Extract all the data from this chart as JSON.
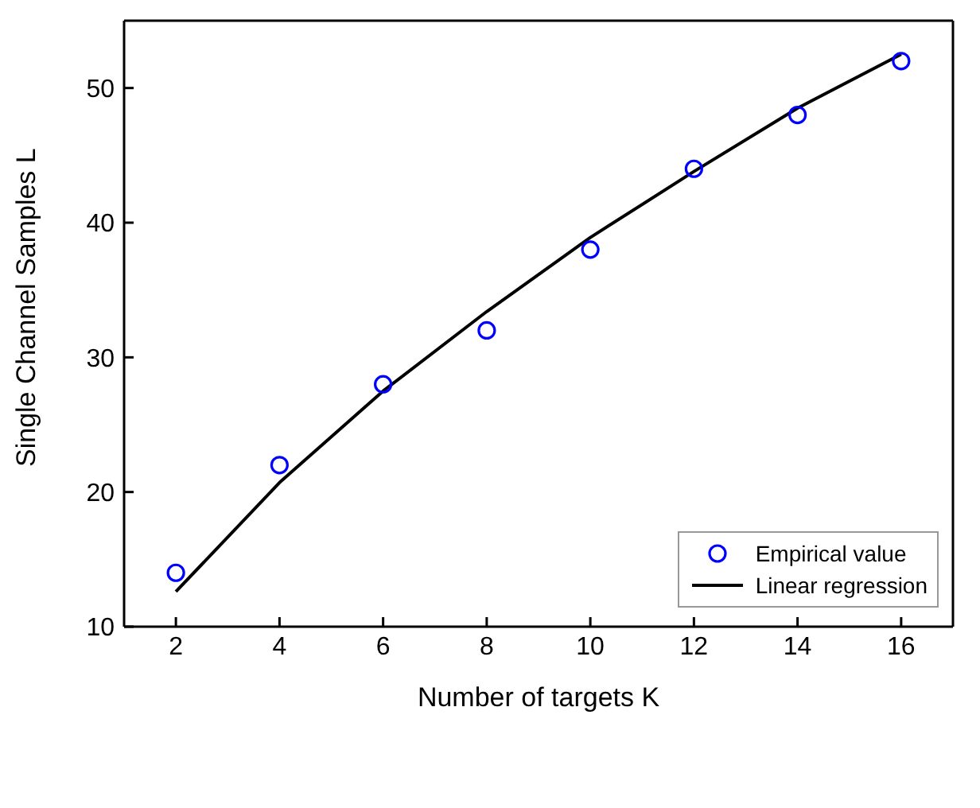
{
  "chart_data": {
    "type": "scatter",
    "xlabel": "Number of targets K",
    "ylabel": "Single Channel Samples L",
    "x": [
      2,
      4,
      6,
      8,
      10,
      12,
      14,
      16
    ],
    "series": [
      {
        "name": "Empirical value",
        "color": "#0000ff",
        "marker": "circle",
        "values": [
          14,
          22,
          28,
          32,
          38,
          44,
          48,
          52
        ]
      },
      {
        "name": "Linear regression",
        "type": "line",
        "color": "#000000",
        "marker": "none",
        "line_style": "solid",
        "values": [
          12.6,
          20.7,
          27.5,
          33.4,
          38.9,
          43.8,
          48.5,
          52.5
        ]
      }
    ],
    "xlim": [
      1,
      17
    ],
    "xticks": [
      2,
      4,
      6,
      8,
      10,
      12,
      14,
      16
    ],
    "ylim": [
      10,
      55
    ],
    "yticks": [
      10,
      20,
      30,
      40,
      50
    ],
    "legend": "bottom right"
  }
}
